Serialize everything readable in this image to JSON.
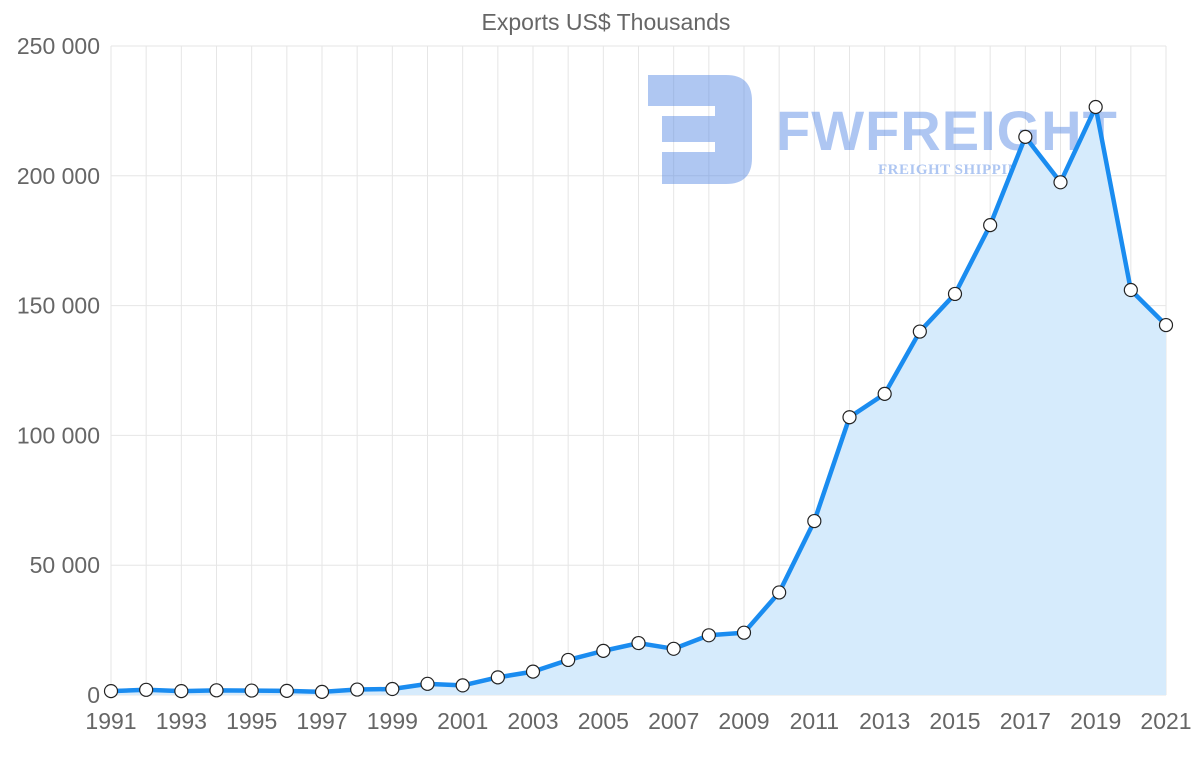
{
  "chart_data": {
    "type": "area",
    "title": "Exports US$ Thousands",
    "xlabel": "",
    "ylabel": "",
    "ylim": [
      0,
      250000
    ],
    "yticks": [
      0,
      50000,
      100000,
      150000,
      200000,
      250000
    ],
    "ytick_labels": [
      "0",
      "50 000",
      "100 000",
      "150 000",
      "200 000",
      "250 000"
    ],
    "x": [
      1991,
      1992,
      1993,
      1994,
      1995,
      1996,
      1997,
      1998,
      1999,
      2000,
      2001,
      2002,
      2003,
      2004,
      2005,
      2006,
      2007,
      2008,
      2009,
      2010,
      2011,
      2012,
      2013,
      2014,
      2015,
      2016,
      2017,
      2018,
      2019,
      2020,
      2021
    ],
    "xtick_labels": [
      "1991",
      "1993",
      "1995",
      "1997",
      "1999",
      "2001",
      "2003",
      "2005",
      "2007",
      "2009",
      "2011",
      "2013",
      "2015",
      "2017",
      "2019",
      "2021"
    ],
    "series": [
      {
        "name": "Exports US$ Thousands",
        "values": [
          1500,
          2000,
          1500,
          1800,
          1700,
          1600,
          1200,
          2100,
          2300,
          4300,
          3700,
          6800,
          9000,
          13500,
          17000,
          20000,
          17800,
          23000,
          24000,
          39500,
          67000,
          107000,
          116000,
          140000,
          154500,
          181000,
          215000,
          197500,
          226500,
          156000,
          142500
        ]
      }
    ],
    "grid": true,
    "legend": "none",
    "colors": {
      "line": "#1a8cf0",
      "fill": "#d6ebfc",
      "grid": "#e6e6e6",
      "text": "#666666"
    }
  },
  "watermark": {
    "brand": "FWFREIGHT",
    "tagline": "FREIGHT SHIPPING",
    "icon": "fw-logo-icon"
  }
}
